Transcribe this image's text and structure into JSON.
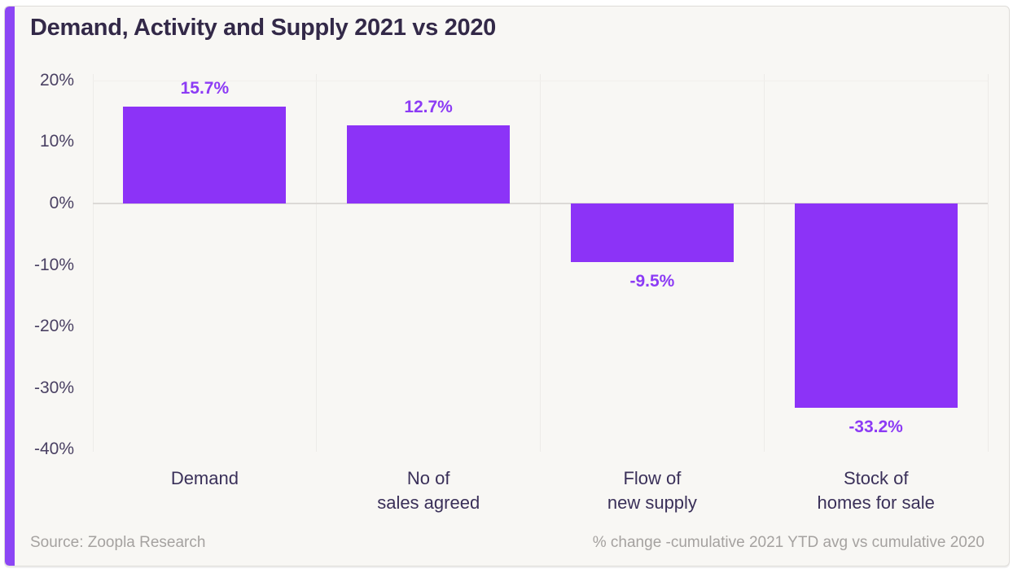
{
  "card": {
    "source": "Source: Zoopla Research",
    "footnote": "% change -cumulative 2021 YTD avg vs cumulative 2020"
  },
  "colors": {
    "accent_bar": "#8c33f7",
    "accent_stripe": "#8c46f5",
    "value_label": "#8c3bf5",
    "ink_title": "#332948",
    "tick_text": "#4a4163",
    "category_text": "#3a3059",
    "muted_text": "#a5a2a0",
    "gridline": "#edebe8",
    "zero_line": "#dcd9d6",
    "card_bg": "#f8f7f4"
  },
  "chart_data": {
    "type": "bar",
    "title": "Demand, Activity and Supply 2021 vs 2020",
    "categories": [
      "Demand",
      "No of\nsales agreed",
      "Flow of\nnew supply",
      "Stock of\nhomes for sale"
    ],
    "values": [
      15.7,
      12.7,
      -9.5,
      -33.2
    ],
    "data_labels": [
      "15.7%",
      "12.7%",
      "-9.5%",
      "-33.2%"
    ],
    "xlabel": "",
    "ylabel": "",
    "ylim": [
      -40,
      20
    ],
    "yticks": [
      {
        "value": 20,
        "label": "20%"
      },
      {
        "value": 10,
        "label": "10%"
      },
      {
        "value": 0,
        "label": "0%"
      },
      {
        "value": -10,
        "label": "-10%"
      },
      {
        "value": -20,
        "label": "-20%"
      },
      {
        "value": -30,
        "label": "-30%"
      },
      {
        "value": -40,
        "label": "-40%"
      }
    ],
    "grid": "vertical column separators + zero baseline only",
    "legend": "none",
    "bar_color": "#8c33f7"
  }
}
